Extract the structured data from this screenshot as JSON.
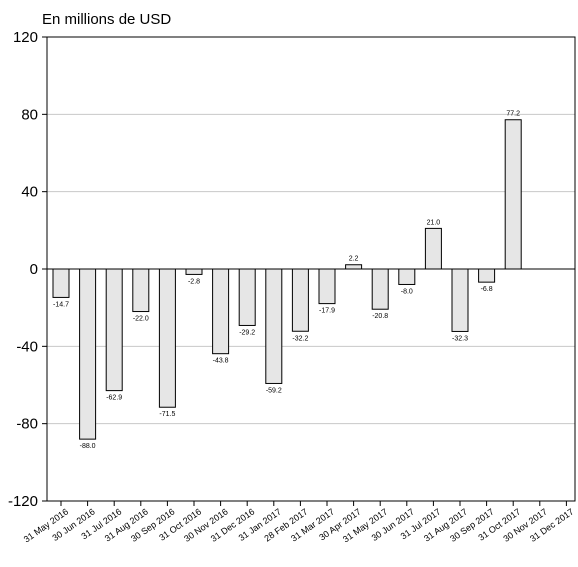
{
  "chart_data": {
    "type": "bar",
    "title": "En millions de USD",
    "xlabel": "",
    "ylabel": "",
    "ylim": [
      -120,
      120
    ],
    "yticks": [
      120,
      80,
      40,
      0,
      -40,
      -80,
      -120
    ],
    "grid": true,
    "bar_color": "#e6e6e6",
    "categories": [
      "31 May 2016",
      "30 Jun 2016",
      "31 Jul 2016",
      "31 Aug 2016",
      "30 Sep 2016",
      "31 Oct 2016",
      "30 Nov 2016",
      "31 Dec 2016",
      "31 Jan 2017",
      "28 Feb 2017",
      "31 Mar 2017",
      "30 Apr 2017",
      "31 May 2017",
      "30 Jun 2017",
      "31 Jul 2017",
      "31 Aug 2017",
      "30 Sep 2017",
      "31 Oct 2017",
      "30 Nov 2017",
      "31 Dec 2017"
    ],
    "values": [
      -14.7,
      -88.0,
      -62.9,
      -22.0,
      -71.5,
      -2.8,
      -43.8,
      -29.2,
      -59.2,
      -32.2,
      -17.9,
      2.2,
      -20.8,
      -8.0,
      21.0,
      -32.3,
      -6.8,
      77.2,
      null,
      null
    ],
    "data_labels": [
      "-14.7",
      "-88.0",
      "-62.9",
      "-22.0",
      "-71.5",
      "-2.8",
      "-43.8",
      "-29.2",
      "-59.2",
      "-32.2",
      "-17.9",
      "2.2",
      "-20.8",
      "-8.0",
      "21.0",
      "-32.3",
      "-6.8",
      "77.2",
      "",
      ""
    ]
  }
}
